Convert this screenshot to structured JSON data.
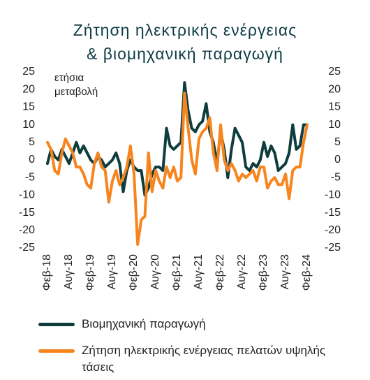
{
  "chart_data": {
    "type": "line",
    "title": [
      "Ζήτηση ηλεκτρικής ενέργειας",
      "& βιομηχανική παραγωγή"
    ],
    "y_label": "ετήσια μεταβολή",
    "categories": [
      "Φεβ-18",
      null,
      null,
      null,
      null,
      null,
      "Αυγ-18",
      null,
      null,
      null,
      null,
      null,
      "Φεβ-19",
      null,
      null,
      null,
      null,
      null,
      "Αυγ-19",
      null,
      null,
      null,
      null,
      null,
      "Φεβ-20",
      null,
      null,
      null,
      null,
      null,
      "Αυγ-20",
      null,
      null,
      null,
      null,
      null,
      "Φεβ-21",
      null,
      null,
      null,
      null,
      null,
      "Αυγ-21",
      null,
      null,
      null,
      null,
      null,
      "Φεβ-22",
      null,
      null,
      null,
      null,
      null,
      "Αυγ-22",
      null,
      null,
      null,
      null,
      null,
      "Φεβ-23",
      null,
      null,
      null,
      null,
      null,
      "Αυγ-23",
      null,
      null,
      null,
      null,
      null,
      "Φεβ-24"
    ],
    "series": [
      {
        "name": "Βιομηχανική παραγωγή",
        "color": "#0f3d3e",
        "values": [
          -1,
          3,
          1,
          0,
          3,
          1,
          -1,
          2,
          5,
          2,
          4,
          2,
          0,
          -1,
          1,
          0,
          -2,
          -1,
          0,
          2,
          -1,
          -9,
          -3,
          0,
          -2,
          -3,
          -3,
          -10,
          -8,
          -4,
          -2,
          -2,
          -3,
          9,
          4,
          3,
          4,
          5,
          22,
          14,
          9,
          8,
          10,
          11,
          16,
          8,
          5,
          -1,
          8,
          3,
          -5,
          3,
          9,
          7,
          5,
          -2,
          -3,
          -1,
          -2,
          0,
          5,
          1,
          4,
          2,
          -3,
          -2,
          -1,
          2,
          10,
          3,
          4,
          10,
          10
        ]
      },
      {
        "name": "Ζήτηση ηλεκτρικής ενέργειας πελατών υψηλής τάσεις",
        "color": "#f7851e",
        "values": [
          5,
          3,
          -3,
          -4,
          2,
          6,
          4,
          2,
          -2,
          -2,
          -4,
          -7,
          -8,
          -1,
          2,
          -2,
          -3,
          -12,
          -6,
          -3,
          -7,
          -5,
          -2,
          4,
          -4,
          -24,
          -17,
          -16,
          2,
          -9,
          -3,
          -6,
          -8,
          -2,
          -5,
          -2,
          -6,
          -5,
          19,
          9,
          0,
          -4,
          6,
          8,
          9,
          12,
          2,
          -3,
          10,
          0,
          -3,
          -1,
          -3,
          -6,
          -4,
          -5,
          -4,
          -3,
          -6,
          -2,
          -2,
          -8,
          -6,
          -5,
          -7,
          -7,
          -4,
          -11,
          -3,
          -2,
          -2,
          5,
          10
        ]
      }
    ],
    "ylim": [
      -25,
      25
    ],
    "yticks": [
      -25,
      -20,
      -15,
      -10,
      -5,
      0,
      5,
      10,
      15,
      20,
      25
    ],
    "y2lim": [
      -25,
      25
    ],
    "y2ticks": [
      -25,
      -20,
      -15,
      -10,
      -5,
      0,
      5,
      10,
      15,
      20,
      25
    ],
    "grid": false
  }
}
